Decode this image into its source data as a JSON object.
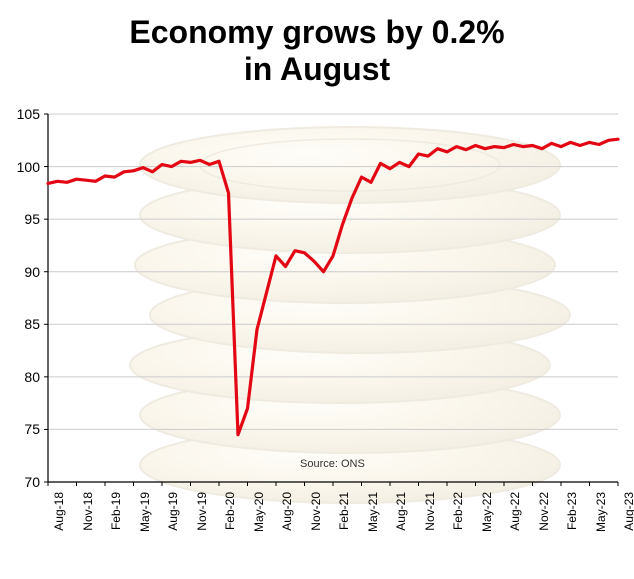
{
  "title_line1": "Economy grows by 0.2%",
  "title_line2": "in August",
  "title_fontsize": 32,
  "source_label": "Source: ONS",
  "chart": {
    "type": "line",
    "line_color": "#e30613",
    "line_width": 3.2,
    "background_color": "#ffffff",
    "grid_color": "#cccccc",
    "axis_color": "#000000",
    "ylim": [
      70,
      105
    ],
    "ytick_step": 5,
    "yticks": [
      70,
      75,
      80,
      85,
      90,
      95,
      100,
      105
    ],
    "x_categories": [
      "Aug-18",
      "Nov-18",
      "Feb-19",
      "May-19",
      "Aug-19",
      "Nov-19",
      "Feb-20",
      "May-20",
      "Aug-20",
      "Nov-20",
      "Feb-21",
      "May-21",
      "Aug-21",
      "Nov-21",
      "Feb-22",
      "May-22",
      "Aug-22",
      "Nov-22",
      "Feb-23",
      "May-23",
      "Aug-23"
    ],
    "x_tick_step_months": 3,
    "values_monthly": [
      98.4,
      98.6,
      98.5,
      98.8,
      98.7,
      98.6,
      99.1,
      99.0,
      99.5,
      99.6,
      99.9,
      99.5,
      100.2,
      100.0,
      100.5,
      100.4,
      100.6,
      100.2,
      100.5,
      97.5,
      74.5,
      77.0,
      84.5,
      88.0,
      91.5,
      90.5,
      92.0,
      91.8,
      91.0,
      90.0,
      91.5,
      94.5,
      97.0,
      99.0,
      98.5,
      100.3,
      99.8,
      100.4,
      100.0,
      101.2,
      101.0,
      101.7,
      101.4,
      101.9,
      101.6,
      102.0,
      101.7,
      101.9,
      101.8,
      102.1,
      101.9,
      102.0,
      101.7,
      102.2,
      101.9,
      102.3,
      102.0,
      102.3,
      102.1,
      102.5,
      102.6
    ],
    "coin_bg_opacity": 0.18,
    "coin_colors": [
      "#f2e6c2",
      "#d9c38a",
      "#b89a5a"
    ]
  }
}
